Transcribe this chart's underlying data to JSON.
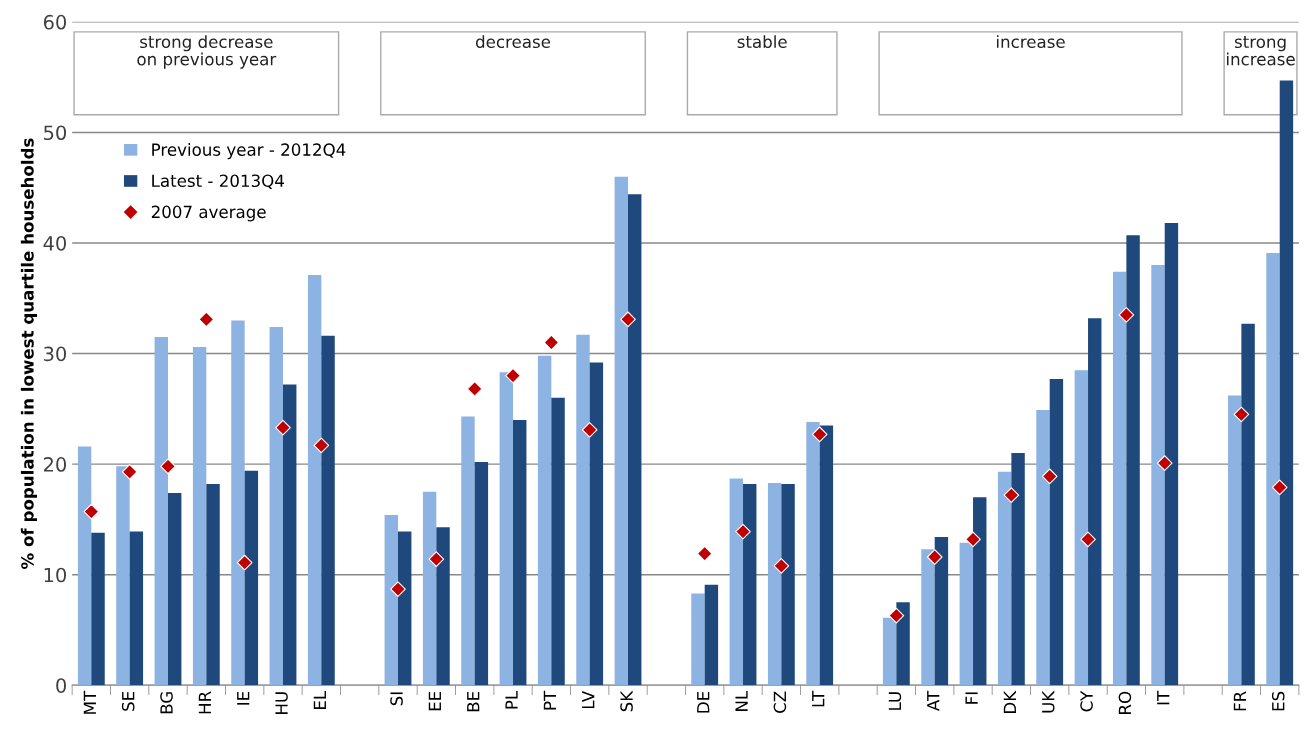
{
  "chart_data": {
    "type": "bar",
    "ylabel": "% of population in lowest quartile households",
    "categories": [
      "MT",
      "SE",
      "BG",
      "HR",
      "IE",
      "HU",
      "EL",
      null,
      "SI",
      "EE",
      "BE",
      "PL",
      "PT",
      "LV",
      "SK",
      null,
      "DE",
      "NL",
      "CZ",
      "LT",
      null,
      "LU",
      "AT",
      "FI",
      "DK",
      "UK",
      "CY",
      "RO",
      "IT",
      null,
      "FR",
      "ES"
    ],
    "series": [
      {
        "name": "Previous year - 2012Q4",
        "color": "#8db3e2",
        "values": [
          21.6,
          19.8,
          31.5,
          30.6,
          33.0,
          32.4,
          37.1,
          null,
          15.4,
          17.5,
          24.3,
          28.3,
          29.8,
          31.7,
          46.0,
          null,
          8.3,
          18.7,
          18.3,
          23.8,
          null,
          6.1,
          12.3,
          12.9,
          19.3,
          24.9,
          28.5,
          37.4,
          38.0,
          null,
          26.2,
          39.1
        ]
      },
      {
        "name": "Latest - 2013Q4",
        "color": "#1f497d",
        "values": [
          13.8,
          13.9,
          17.4,
          18.2,
          19.4,
          27.2,
          31.6,
          null,
          13.9,
          14.3,
          20.2,
          24.0,
          26.0,
          29.2,
          44.4,
          null,
          9.1,
          18.2,
          18.2,
          23.5,
          null,
          7.5,
          13.4,
          17.0,
          21.0,
          27.7,
          33.2,
          40.7,
          41.8,
          null,
          32.7,
          54.7
        ]
      },
      {
        "name": "2007 average",
        "color": "#c00000",
        "type": "scatter",
        "marker": "diamond",
        "values": [
          15.7,
          19.3,
          19.8,
          33.1,
          11.1,
          23.3,
          21.7,
          null,
          8.7,
          11.4,
          26.8,
          28.0,
          31.0,
          23.1,
          33.1,
          null,
          11.9,
          13.9,
          10.8,
          22.7,
          null,
          6.3,
          11.6,
          13.2,
          17.2,
          18.9,
          13.2,
          33.5,
          20.1,
          null,
          24.5,
          17.9
        ]
      }
    ],
    "annotations": [
      "strong decrease\non previous year",
      "decrease",
      "stable",
      "increase",
      "strong\nincrease"
    ],
    "ylim": [
      0,
      60
    ],
    "yticks": [
      0,
      10,
      20,
      30,
      40,
      50,
      60
    ],
    "grid": "y",
    "legend": "top left"
  }
}
